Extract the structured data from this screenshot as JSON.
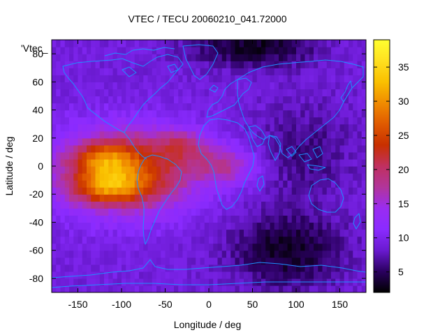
{
  "chart_data": {
    "type": "heatmap",
    "title": "VTEC / TECU 20060210_041.72000",
    "xlabel": "Longitude / deg",
    "ylabel": "Latitude / deg",
    "xlim": [
      -180,
      180
    ],
    "ylim": [
      -90,
      90
    ],
    "x_ticks": [
      -150,
      -100,
      -50,
      0,
      50,
      100,
      150
    ],
    "y_ticks": [
      -80,
      -60,
      -40,
      -20,
      0,
      20,
      40,
      60,
      80
    ],
    "legend_label": "'Vtec_",
    "colorbar": {
      "range": [
        2,
        39
      ],
      "ticks": [
        5,
        10,
        15,
        20,
        25,
        30,
        35
      ]
    },
    "colormap": [
      "#000000",
      "#2a0060",
      "#6a1ad0",
      "#8a2bff",
      "#9a2cf0",
      "#b2359a",
      "#c03060",
      "#c83000",
      "#e05a00",
      "#f08c00",
      "#fac000",
      "#ffe020",
      "#ffff30"
    ],
    "grid": "5x5 deg cells",
    "features": {
      "background_vtec": 9,
      "southern_crest": {
        "lon": -115,
        "lat": -15,
        "vtec": 36
      },
      "northern_crest": {
        "lon": -120,
        "lat": 5,
        "vtec": 34
      },
      "equatorial_band_vtec": 26,
      "plume_to_africa": {
        "lon": 20,
        "lat": 0,
        "vtec": 16
      },
      "southern_depletion": {
        "lon": 90,
        "lat": -60,
        "vtec": 3
      },
      "northern_depletion": {
        "lon": 50,
        "lat": 85,
        "vtec": 3
      }
    }
  }
}
